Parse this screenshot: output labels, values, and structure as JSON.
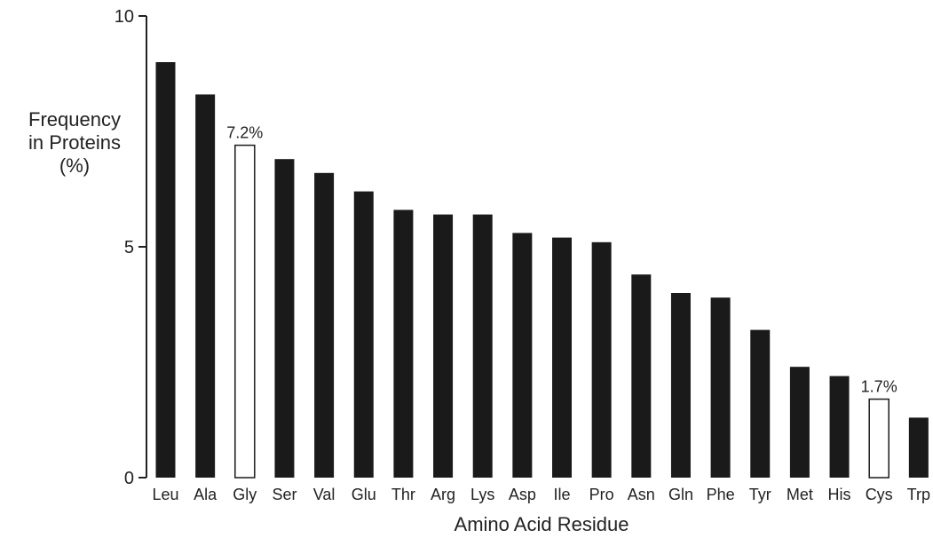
{
  "chart_data": {
    "type": "bar",
    "ylabel_lines": [
      "Frequency",
      "in Proteins",
      "(%)"
    ],
    "xlabel": "Amino Acid Residue",
    "ylim": [
      0,
      10
    ],
    "yticks": [
      0,
      5,
      10
    ],
    "categories": [
      "Leu",
      "Ala",
      "Gly",
      "Ser",
      "Val",
      "Glu",
      "Thr",
      "Arg",
      "Lys",
      "Asp",
      "Ile",
      "Pro",
      "Asn",
      "Gln",
      "Phe",
      "Tyr",
      "Met",
      "His",
      "Cys",
      "Trp"
    ],
    "values": [
      9.0,
      8.3,
      7.2,
      6.9,
      6.6,
      6.2,
      5.8,
      5.7,
      5.7,
      5.3,
      5.2,
      5.1,
      4.4,
      4.0,
      3.9,
      3.2,
      2.4,
      2.2,
      1.7,
      1.3
    ],
    "highlighted": [
      "Gly",
      "Cys"
    ],
    "data_labels": [
      {
        "category": "Gly",
        "text": "7.2%"
      },
      {
        "category": "Cys",
        "text": "1.7%"
      }
    ],
    "colors": {
      "bar": "#1a1a1a",
      "highlight_fill": "#ffffff",
      "axis": "#222222"
    },
    "grid": false,
    "legend": "none"
  }
}
